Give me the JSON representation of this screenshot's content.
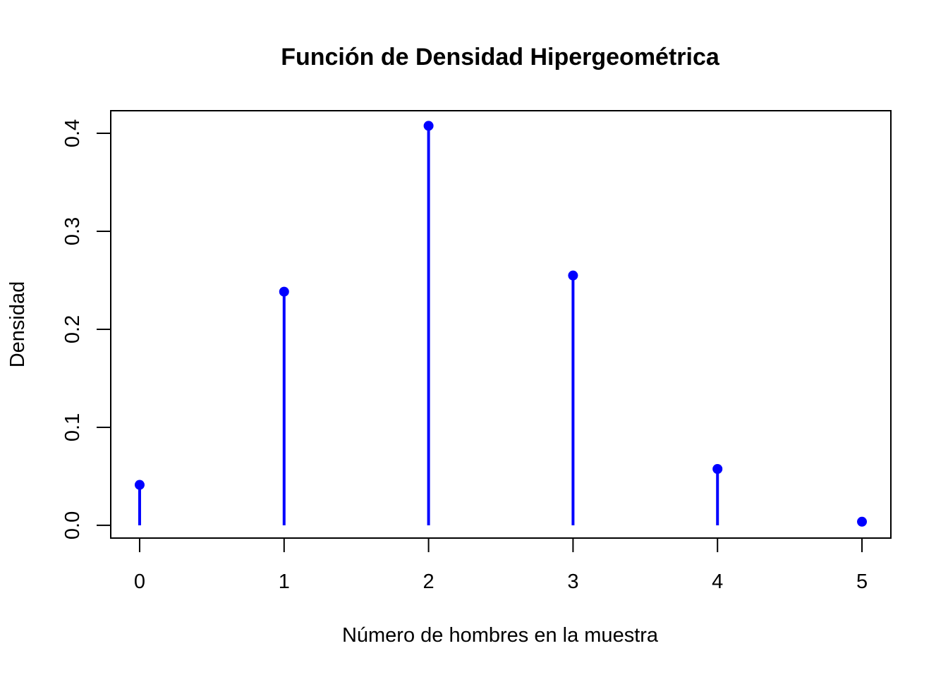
{
  "chart_data": {
    "type": "stem",
    "title": "Función de Densidad Hipergeométrica",
    "xlabel": "Número de hombres en la muestra",
    "ylabel": "Densidad",
    "x": [
      0,
      1,
      2,
      3,
      4,
      5
    ],
    "values": [
      0.0413,
      0.2384,
      0.4076,
      0.2549,
      0.0575,
      0.0037
    ],
    "xticks": [
      "0",
      "1",
      "2",
      "3",
      "4",
      "5"
    ],
    "yticks": [
      "0.0",
      "0.1",
      "0.2",
      "0.3",
      "0.4"
    ],
    "xlim": [
      -0.2,
      5.2
    ],
    "ylim": [
      -0.013,
      0.423
    ],
    "grid": false,
    "color": "#0000FF"
  }
}
